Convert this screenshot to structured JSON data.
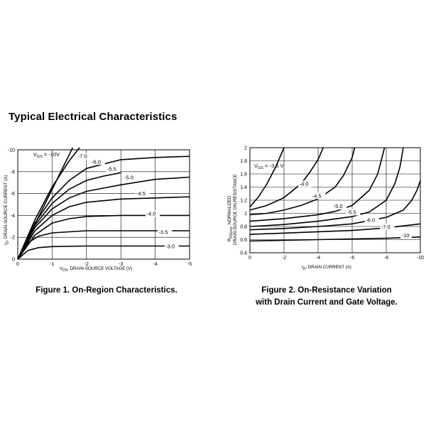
{
  "section_title": "Typical Electrical Characteristics",
  "chart_data": [
    {
      "type": "line",
      "title": "Figure 1. On-Region Characteristics.",
      "xlabel_main": "V",
      "xlabel_sub": "DS",
      "xlabel_rest": ", DRAIN-SOURCE VOLTAGE (V)",
      "ylabel_main": "I",
      "ylabel_sub": "D",
      "ylabel_rest": ", DRAIN-SOURCE CURRENT (A)",
      "xlim": [
        0,
        -5
      ],
      "ylim": [
        0,
        -10
      ],
      "x_ticks": [
        "0",
        "-1",
        "-2",
        "-3",
        "-4",
        "-5"
      ],
      "y_ticks": [
        "0",
        "-2",
        "-4",
        "-6",
        "-8",
        "-10"
      ],
      "x_tick_values": [
        0,
        -1,
        -2,
        -3,
        -4,
        -5
      ],
      "y_tick_values": [
        0,
        -2,
        -4,
        -6,
        -8,
        -10
      ],
      "grid": true,
      "series": [
        {
          "name": "-10V",
          "label_prefix": "V",
          "label_sub": "GS",
          "label_suffix": " = -10V",
          "label_at": [
            -0.45,
            -9.4
          ],
          "points": [
            [
              0,
              0
            ],
            [
              -1.6,
              -10.2
            ]
          ]
        },
        {
          "name": "-7.0",
          "label": "-7.0",
          "label_at": [
            -1.75,
            -9.25
          ],
          "points": [
            [
              0,
              0
            ],
            [
              -0.5,
              -3.6
            ],
            [
              -1.0,
              -6.6
            ],
            [
              -1.5,
              -9.0
            ],
            [
              -1.8,
              -10.2
            ]
          ]
        },
        {
          "name": "-6.0",
          "label": "-6.0",
          "label_at": [
            -2.15,
            -8.75
          ],
          "points": [
            [
              0,
              0
            ],
            [
              -0.5,
              -3.3
            ],
            [
              -1.0,
              -5.6
            ],
            [
              -1.5,
              -7.2
            ],
            [
              -2.0,
              -8.3
            ],
            [
              -3.0,
              -9.1
            ],
            [
              -4.0,
              -9.3
            ],
            [
              -5.0,
              -9.4
            ]
          ]
        },
        {
          "name": "-5.5",
          "label": "-5.5",
          "label_at": [
            -2.6,
            -8.1
          ],
          "points": [
            [
              0,
              0
            ],
            [
              -0.5,
              -3.1
            ],
            [
              -1.0,
              -5.1
            ],
            [
              -1.5,
              -6.4
            ],
            [
              -2.0,
              -7.2
            ],
            [
              -2.5,
              -7.6
            ],
            [
              -3.0,
              -7.9
            ]
          ]
        },
        {
          "name": "-5.0",
          "label": "-5.0",
          "label_at": [
            -3.1,
            -7.3
          ],
          "points": [
            [
              0,
              0
            ],
            [
              -0.5,
              -2.9
            ],
            [
              -1.0,
              -4.6
            ],
            [
              -1.5,
              -5.6
            ],
            [
              -2.0,
              -6.2
            ],
            [
              -2.5,
              -6.5
            ],
            [
              -3.0,
              -6.8
            ],
            [
              -4.0,
              -7.3
            ],
            [
              -5.0,
              -7.5
            ]
          ]
        },
        {
          "name": "-4.5",
          "label": "-4.5",
          "label_at": [
            -3.45,
            -5.85
          ],
          "points": [
            [
              0,
              0
            ],
            [
              -0.5,
              -2.6
            ],
            [
              -1.0,
              -4.0
            ],
            [
              -1.5,
              -4.8
            ],
            [
              -2.0,
              -5.2
            ],
            [
              -3.0,
              -5.5
            ],
            [
              -4.0,
              -5.6
            ],
            [
              -5.0,
              -5.7
            ]
          ]
        },
        {
          "name": "-4.0",
          "label": "-4.0",
          "label_at": [
            -3.75,
            -4.0
          ],
          "points": [
            [
              0,
              0
            ],
            [
              -0.5,
              -2.2
            ],
            [
              -1.0,
              -3.3
            ],
            [
              -1.5,
              -3.7
            ],
            [
              -2.0,
              -3.9
            ],
            [
              -3.0,
              -4.0
            ],
            [
              -4.0,
              -4.0
            ],
            [
              -5.0,
              -4.0
            ]
          ]
        },
        {
          "name": "-3.5",
          "label": "-3.5",
          "label_at": [
            -4.1,
            -2.3
          ],
          "points": [
            [
              0,
              0
            ],
            [
              -0.3,
              -1.5
            ],
            [
              -0.6,
              -2.1
            ],
            [
              -1.0,
              -2.4
            ],
            [
              -1.5,
              -2.5
            ],
            [
              -2.0,
              -2.6
            ],
            [
              -3.0,
              -2.6
            ],
            [
              -5.0,
              -2.6
            ]
          ]
        },
        {
          "name": "-3.0",
          "label": "-3.0",
          "label_at": [
            -4.3,
            -1.0
          ],
          "points": [
            [
              0,
              0
            ],
            [
              -0.3,
              -0.8
            ],
            [
              -0.6,
              -1.05
            ],
            [
              -1.0,
              -1.15
            ],
            [
              -2.0,
              -1.2
            ],
            [
              -3.0,
              -1.2
            ],
            [
              -5.0,
              -1.2
            ]
          ]
        }
      ]
    },
    {
      "type": "line",
      "title_lines": [
        "Figure 2. On-Resistance Variation",
        "with Drain Current and Gate Voltage."
      ],
      "xlabel_main": "I",
      "xlabel_sub": "D",
      "xlabel_rest": ", DRAIN CURRENT (A)",
      "ylabel_line1_main": "R",
      "ylabel_line1_sub": "DS(on)",
      "ylabel_line1_rest": ", NORMALIZED",
      "ylabel_line2": "DRAIN-SOURCE ON-RESISTANCE",
      "xlim": [
        0,
        -10
      ],
      "ylim": [
        0.4,
        2.0
      ],
      "x_ticks": [
        "0",
        "-2",
        "-4",
        "-6",
        "-8",
        "-10"
      ],
      "y_ticks": [
        "0.4",
        "0.6",
        "0.8",
        "1",
        "1.2",
        "1.4",
        "1.6",
        "1.8",
        "2"
      ],
      "x_tick_values": [
        0,
        -2,
        -4,
        -6,
        -8,
        -10
      ],
      "y_tick_values": [
        0.4,
        0.6,
        0.8,
        1.0,
        1.2,
        1.4,
        1.6,
        1.8,
        2.0
      ],
      "grid": true,
      "series": [
        {
          "name": "-3.5 V",
          "label_prefix": "V",
          "label_sub": "GS",
          "label_suffix": " = -3.5 V",
          "label_at": [
            -0.25,
            1.7
          ],
          "points": [
            [
              0,
              1.1
            ],
            [
              -0.5,
              1.25
            ],
            [
              -1.0,
              1.45
            ],
            [
              -1.5,
              1.7
            ],
            [
              -2.0,
              2.0
            ]
          ]
        },
        {
          "name": "-4.0",
          "label": "-4.0",
          "label_at": [
            -2.9,
            1.42
          ],
          "points": [
            [
              0,
              1.05
            ],
            [
              -1.0,
              1.12
            ],
            [
              -2.0,
              1.24
            ],
            [
              -3.0,
              1.45
            ],
            [
              -3.5,
              1.62
            ],
            [
              -4.0,
              1.82
            ],
            [
              -4.3,
              2.0
            ]
          ]
        },
        {
          "name": "-4.5",
          "label": "-4.5",
          "label_at": [
            -3.65,
            1.24
          ],
          "points": [
            [
              0,
              0.98
            ],
            [
              -1.0,
              1.0
            ],
            [
              -2.0,
              1.05
            ],
            [
              -3.0,
              1.12
            ],
            [
              -4.0,
              1.22
            ],
            [
              -5.0,
              1.4
            ],
            [
              -5.5,
              1.58
            ],
            [
              -6.0,
              1.85
            ],
            [
              -6.15,
              2.0
            ]
          ]
        },
        {
          "name": "-5.0",
          "label": "-5.0",
          "label_at": [
            -4.9,
            1.08
          ],
          "points": [
            [
              0,
              0.88
            ],
            [
              -2.0,
              0.92
            ],
            [
              -4.0,
              0.98
            ],
            [
              -5.0,
              1.03
            ],
            [
              -6.0,
              1.12
            ],
            [
              -7.0,
              1.35
            ],
            [
              -7.5,
              1.6
            ],
            [
              -7.9,
              2.0
            ]
          ]
        },
        {
          "name": "-5.5",
          "label": "-5.5",
          "label_at": [
            -5.7,
            0.99
          ],
          "points": [
            [
              0,
              0.8
            ],
            [
              -2.0,
              0.83
            ],
            [
              -4.0,
              0.88
            ],
            [
              -6.0,
              0.95
            ],
            [
              -7.0,
              1.02
            ],
            [
              -8.0,
              1.2
            ],
            [
              -8.5,
              1.45
            ],
            [
              -8.8,
              1.7
            ],
            [
              -9.0,
              2.0
            ]
          ]
        },
        {
          "name": "-6.0",
          "label": "-6.0",
          "label_at": [
            -6.8,
            0.87
          ],
          "points": [
            [
              0,
              0.75
            ],
            [
              -2.0,
              0.77
            ],
            [
              -4.0,
              0.8
            ],
            [
              -6.0,
              0.84
            ],
            [
              -8.0,
              0.94
            ],
            [
              -9.0,
              1.05
            ],
            [
              -9.5,
              1.2
            ],
            [
              -9.8,
              1.35
            ],
            [
              -10.0,
              1.5
            ]
          ]
        },
        {
          "name": "-7.0",
          "label": "-7.0",
          "label_at": [
            -7.7,
            0.77
          ],
          "points": [
            [
              0,
              0.68
            ],
            [
              -2.0,
              0.7
            ],
            [
              -4.0,
              0.72
            ],
            [
              -6.0,
              0.74
            ],
            [
              -8.0,
              0.78
            ],
            [
              -10.0,
              0.84
            ]
          ]
        },
        {
          "name": "-10",
          "label": "-10",
          "label_at": [
            -8.9,
            0.64
          ],
          "points": [
            [
              0,
              0.58
            ],
            [
              -2.0,
              0.59
            ],
            [
              -4.0,
              0.6
            ],
            [
              -6.0,
              0.61
            ],
            [
              -8.0,
              0.62
            ],
            [
              -10.0,
              0.64
            ]
          ]
        }
      ]
    }
  ]
}
